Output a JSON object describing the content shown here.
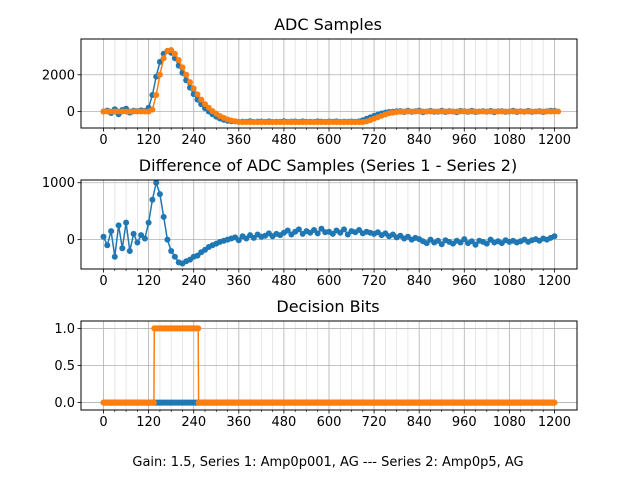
{
  "chart_data": [
    {
      "type": "scatter",
      "title": "ADC Samples",
      "xlabel": "",
      "ylabel": "",
      "xlim": [
        -60,
        1260
      ],
      "ylim": [
        -900,
        3950
      ],
      "xticks": [
        0,
        120,
        240,
        360,
        480,
        600,
        720,
        840,
        960,
        1080,
        1200
      ],
      "yticks": [
        0,
        2000
      ],
      "grid": true,
      "x_start": 0,
      "x_step": 10,
      "series": [
        {
          "color": "#1f77b4",
          "values": [
            0,
            50,
            -80,
            120,
            -150,
            80,
            150,
            -60,
            40,
            20,
            60,
            30,
            200,
            900,
            1900,
            2700,
            3150,
            3300,
            3200,
            2900,
            2500,
            2100,
            1700,
            1300,
            950,
            650,
            400,
            180,
            0,
            -150,
            -280,
            -380,
            -450,
            -500,
            -530,
            -540,
            -570,
            -550,
            -560,
            -530,
            -575,
            -550,
            -545,
            -565,
            -540,
            -570,
            -555,
            -560,
            -535,
            -570,
            -550,
            -545,
            -565,
            -540,
            -560,
            -555,
            -570,
            -540,
            -550,
            -565,
            -545,
            -560,
            -540,
            -570,
            -550,
            -555,
            -545,
            -560,
            -540,
            -480,
            -400,
            -320,
            -240,
            -170,
            -110,
            -60,
            -30,
            -10,
            10,
            20,
            -30,
            40,
            -20,
            10,
            50,
            -40,
            0,
            30,
            -20,
            -10,
            40,
            -30,
            20,
            0,
            -40,
            30,
            10,
            -20,
            40,
            -30,
            0,
            20,
            -10,
            30,
            -40,
            10,
            20,
            -20,
            0,
            40,
            -30,
            10,
            -10,
            30,
            -20,
            0,
            20,
            -30,
            10,
            40,
            30
          ]
        },
        {
          "color": "#ff7f0e",
          "values": [
            0,
            0,
            0,
            0,
            0,
            0,
            0,
            0,
            0,
            0,
            0,
            0,
            0,
            100,
            900,
            2000,
            2900,
            3300,
            3350,
            3150,
            2800,
            2400,
            2000,
            1600,
            1250,
            930,
            650,
            400,
            200,
            20,
            -120,
            -250,
            -350,
            -430,
            -490,
            -530,
            -560,
            -580,
            -580,
            -580,
            -580,
            -580,
            -580,
            -580,
            -580,
            -580,
            -580,
            -580,
            -580,
            -580,
            -580,
            -580,
            -580,
            -580,
            -580,
            -580,
            -580,
            -580,
            -580,
            -580,
            -580,
            -580,
            -580,
            -580,
            -580,
            -580,
            -580,
            -580,
            -580,
            -580,
            -540,
            -470,
            -390,
            -310,
            -230,
            -160,
            -100,
            -60,
            -30,
            -10,
            0,
            0,
            0,
            0,
            0,
            0,
            0,
            0,
            0,
            0,
            0,
            0,
            0,
            0,
            0,
            0,
            0,
            0,
            0,
            0,
            0,
            0,
            0,
            0,
            0,
            0,
            0,
            0,
            0,
            0,
            0,
            0,
            0,
            0,
            0,
            0,
            0,
            0,
            0,
            0,
            0,
            0
          ]
        }
      ]
    },
    {
      "type": "scatter",
      "title": "Difference of ADC Samples (Series 1 - Series 2)",
      "xlabel": "",
      "ylabel": "",
      "xlim": [
        -60,
        1260
      ],
      "ylim": [
        -516,
        1048
      ],
      "xticks": [
        0,
        120,
        240,
        360,
        480,
        600,
        720,
        840,
        960,
        1080,
        1200
      ],
      "yticks": [
        0,
        1000
      ],
      "grid": true,
      "x_start": 0,
      "x_step": 10,
      "series": [
        {
          "color": "#1f77b4",
          "values": [
            50,
            -100,
            150,
            -300,
            250,
            -150,
            300,
            -200,
            100,
            -50,
            80,
            20,
            300,
            700,
            1000,
            800,
            400,
            0,
            -200,
            -300,
            -400,
            -420,
            -380,
            -350,
            -300,
            -280,
            -220,
            -180,
            -130,
            -100,
            -70,
            -40,
            -20,
            0,
            20,
            40,
            -10,
            60,
            20,
            80,
            30,
            90,
            50,
            70,
            110,
            60,
            100,
            80,
            120,
            160,
            90,
            140,
            180,
            100,
            150,
            120,
            170,
            110,
            190,
            130,
            140,
            100,
            160,
            120,
            180,
            90,
            150,
            130,
            170,
            110,
            140,
            120,
            100,
            130,
            80,
            110,
            60,
            90,
            40,
            70,
            20,
            50,
            0,
            30,
            10,
            -30,
            -60,
            0,
            -50,
            -20,
            -80,
            -10,
            -40,
            -70,
            -20,
            -50,
            10,
            -60,
            -30,
            -90,
            -20,
            -40,
            -70,
            0,
            -50,
            -30,
            -60,
            -10,
            -40,
            -20,
            -50,
            -30,
            0,
            -40,
            -10,
            10,
            -20,
            20,
            0,
            30,
            60
          ]
        }
      ]
    },
    {
      "type": "line",
      "title": "Decision Bits",
      "xlabel": "Gain: 1.5, Series 1: Amp0p001, AG --- Series 2: Amp0p5, AG",
      "ylabel": "",
      "xlim": [
        -60,
        1260
      ],
      "ylim": [
        -0.1,
        1.1
      ],
      "xticks": [
        0,
        120,
        240,
        360,
        480,
        600,
        720,
        840,
        960,
        1080,
        1200
      ],
      "yticks": [
        0.0,
        0.5,
        1.0
      ],
      "grid": true,
      "x": [
        0,
        134,
        135,
        252,
        253,
        1200
      ],
      "series": [
        {
          "color": "#1f77b4",
          "values": [
            0,
            0,
            0,
            0,
            0,
            0
          ]
        },
        {
          "color": "#ff7f0e",
          "values": [
            0,
            0,
            1,
            1,
            0,
            0
          ]
        }
      ]
    }
  ]
}
